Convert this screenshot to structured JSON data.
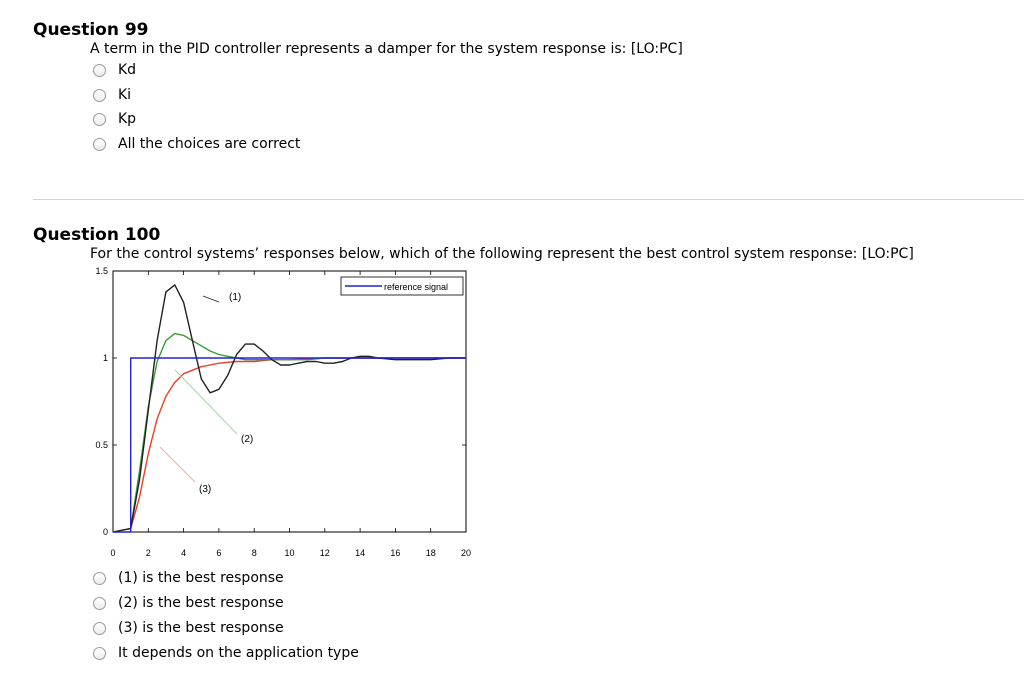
{
  "q99": {
    "title": "Question 99",
    "text": "A term in the PID controller represents a damper for the system response is: [LO:PC]",
    "options": [
      "Kd",
      "Ki",
      "Kp",
      "All the choices are correct"
    ]
  },
  "q100": {
    "title": "Question 100",
    "text": "For the control systems’ responses below, which of the following represent the best control system response: [LO:PC]",
    "options": [
      "(1) is the best response",
      "(2) is the best response",
      "(3) is the best response",
      "It depends on the application type"
    ]
  },
  "chart_data": {
    "type": "line",
    "xlim": [
      0,
      20
    ],
    "ylim": [
      0,
      1.5
    ],
    "x_ticks": [
      "0",
      "2",
      "4",
      "6",
      "8",
      "10",
      "12",
      "14",
      "16",
      "18",
      "20"
    ],
    "y_ticks": [
      "0",
      "0.5",
      "1",
      "1.5"
    ],
    "legend": {
      "entries": [
        "reference signal"
      ],
      "placement": "top-right"
    },
    "annotations": [
      "(1)",
      "(2)",
      "(3)"
    ],
    "colors": {
      "reference": "#2020dd",
      "response1": "#222222",
      "response2": "#3a9a3a",
      "response3": "#e8402a",
      "pointer2": "#a8d4a8",
      "pointer3": "#f0a8a8"
    },
    "series": [
      {
        "x": [
          0,
          1,
          1,
          20
        ],
        "y": [
          0,
          0,
          1,
          1
        ]
      },
      {
        "x": [
          0,
          1,
          1.5,
          2,
          2.5,
          3,
          3.5,
          4,
          4.5,
          5,
          5.5,
          6,
          6.5,
          7,
          7.5,
          8,
          8.5,
          9,
          9.5,
          10,
          10.5,
          11,
          11.5,
          12,
          12.5,
          13,
          13.5,
          14,
          14.5,
          15,
          16,
          17,
          18,
          19,
          20
        ],
        "y": [
          0,
          0.02,
          0.3,
          0.7,
          1.1,
          1.38,
          1.42,
          1.32,
          1.1,
          0.88,
          0.8,
          0.82,
          0.9,
          1.02,
          1.08,
          1.08,
          1.04,
          0.99,
          0.96,
          0.96,
          0.97,
          0.98,
          0.98,
          0.97,
          0.97,
          0.98,
          1.0,
          1.01,
          1.01,
          1.0,
          0.99,
          0.99,
          0.99,
          1.0,
          1.0
        ]
      },
      {
        "x": [
          0,
          1,
          1.5,
          2,
          2.5,
          3,
          3.5,
          4,
          4.5,
          5,
          5.5,
          6,
          6.5,
          7,
          7.5,
          8,
          9,
          10,
          11,
          12,
          14,
          16,
          18,
          20
        ],
        "y": [
          0,
          0.02,
          0.35,
          0.72,
          0.98,
          1.1,
          1.14,
          1.13,
          1.1,
          1.07,
          1.04,
          1.02,
          1.01,
          1.0,
          0.99,
          0.99,
          0.99,
          0.99,
          0.99,
          1.0,
          1.0,
          1.0,
          1.0,
          1.0
        ]
      },
      {
        "x": [
          0,
          1,
          1.5,
          2,
          2.5,
          3,
          3.5,
          4,
          4.5,
          5,
          5.5,
          6,
          7,
          8,
          9,
          10,
          12,
          14,
          16,
          18,
          20
        ],
        "y": [
          0,
          0.02,
          0.2,
          0.45,
          0.65,
          0.78,
          0.86,
          0.91,
          0.93,
          0.95,
          0.96,
          0.97,
          0.98,
          0.98,
          0.99,
          0.99,
          1.0,
          1.0,
          1.0,
          1.0,
          1.0
        ]
      }
    ]
  }
}
